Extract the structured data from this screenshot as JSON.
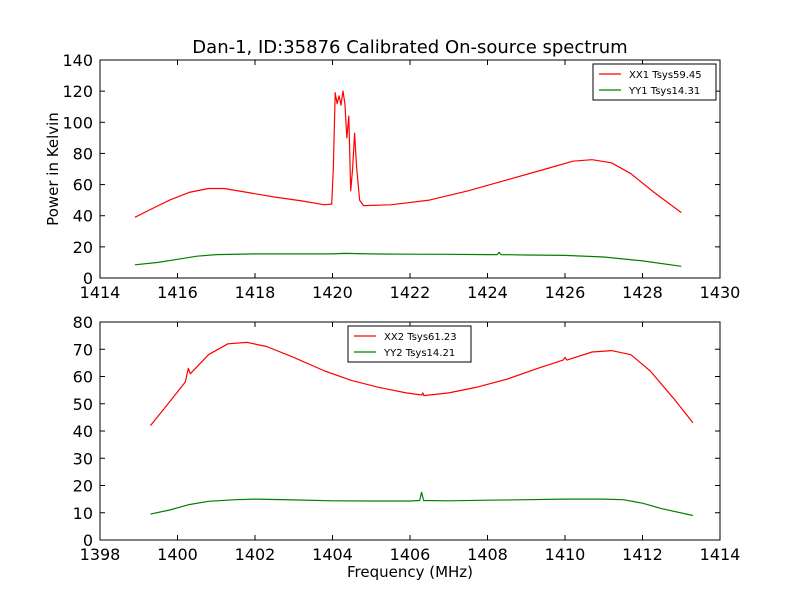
{
  "title": "Dan-1, ID:35876 Calibrated On-source spectrum",
  "xlabel": "Frequency (MHz)",
  "ylabel": "Power in Kelvin",
  "colors": {
    "xx": "#ff0000",
    "yy": "#008000"
  },
  "chart_data": [
    {
      "type": "line",
      "xlim": [
        1414,
        1430
      ],
      "ylim": [
        0,
        140
      ],
      "xticks": [
        1414,
        1416,
        1418,
        1420,
        1422,
        1424,
        1426,
        1428,
        1430
      ],
      "yticks": [
        0,
        20,
        40,
        60,
        80,
        100,
        120,
        140
      ],
      "legend_position": "top-right",
      "series": [
        {
          "name": "XX1 Tsys59.45",
          "color": "#ff0000",
          "points": [
            [
              1414.9,
              39
            ],
            [
              1415.3,
              44
            ],
            [
              1415.8,
              50
            ],
            [
              1416.3,
              55
            ],
            [
              1416.8,
              57.5
            ],
            [
              1417.2,
              57.5
            ],
            [
              1417.8,
              55
            ],
            [
              1418.5,
              52
            ],
            [
              1419.2,
              49.5
            ],
            [
              1419.8,
              47
            ],
            [
              1419.98,
              47.5
            ],
            [
              1420.02,
              70
            ],
            [
              1420.07,
              119
            ],
            [
              1420.12,
              112
            ],
            [
              1420.17,
              117
            ],
            [
              1420.22,
              111
            ],
            [
              1420.27,
              120
            ],
            [
              1420.32,
              112
            ],
            [
              1420.37,
              90
            ],
            [
              1420.42,
              104
            ],
            [
              1420.47,
              56
            ],
            [
              1420.52,
              70
            ],
            [
              1420.57,
              93
            ],
            [
              1420.62,
              72
            ],
            [
              1420.7,
              50
            ],
            [
              1420.8,
              46.5
            ],
            [
              1421.5,
              47
            ],
            [
              1422.5,
              50
            ],
            [
              1423.5,
              56
            ],
            [
              1424.5,
              63
            ],
            [
              1425.5,
              70
            ],
            [
              1426.2,
              75
            ],
            [
              1426.7,
              76
            ],
            [
              1427.2,
              74
            ],
            [
              1427.7,
              67
            ],
            [
              1428.3,
              55
            ],
            [
              1429.0,
              42
            ]
          ]
        },
        {
          "name": "YY1 Tsys14.31",
          "color": "#008000",
          "points": [
            [
              1414.9,
              8.5
            ],
            [
              1415.5,
              10
            ],
            [
              1416.0,
              12
            ],
            [
              1416.5,
              14
            ],
            [
              1417.0,
              15
            ],
            [
              1418.0,
              15.5
            ],
            [
              1419.0,
              15.5
            ],
            [
              1420.0,
              15.5
            ],
            [
              1420.3,
              15.8
            ],
            [
              1421.0,
              15.5
            ],
            [
              1422.0,
              15.3
            ],
            [
              1423.0,
              15.2
            ],
            [
              1424.0,
              15
            ],
            [
              1424.25,
              15
            ],
            [
              1424.3,
              16.5
            ],
            [
              1424.35,
              15
            ],
            [
              1425.0,
              14.8
            ],
            [
              1426.0,
              14.5
            ],
            [
              1427.0,
              13.5
            ],
            [
              1428.0,
              11
            ],
            [
              1429.0,
              7.5
            ]
          ]
        }
      ]
    },
    {
      "type": "line",
      "xlim": [
        1398,
        1414
      ],
      "ylim": [
        0,
        80
      ],
      "xticks": [
        1398,
        1400,
        1402,
        1404,
        1406,
        1408,
        1410,
        1412,
        1414
      ],
      "yticks": [
        0,
        10,
        20,
        30,
        40,
        50,
        60,
        70,
        80
      ],
      "legend_position": "top-center",
      "series": [
        {
          "name": "XX2 Tsys61.23",
          "color": "#ff0000",
          "points": [
            [
              1399.3,
              42
            ],
            [
              1399.7,
              49
            ],
            [
              1400.2,
              58
            ],
            [
              1400.28,
              63
            ],
            [
              1400.33,
              61
            ],
            [
              1400.8,
              68
            ],
            [
              1401.3,
              72
            ],
            [
              1401.8,
              72.5
            ],
            [
              1402.3,
              71
            ],
            [
              1403.0,
              67
            ],
            [
              1403.8,
              62
            ],
            [
              1404.5,
              58.5
            ],
            [
              1405.2,
              56
            ],
            [
              1405.9,
              54
            ],
            [
              1406.3,
              53.2
            ],
            [
              1406.33,
              54
            ],
            [
              1406.36,
              53
            ],
            [
              1407.0,
              54
            ],
            [
              1407.7,
              56
            ],
            [
              1408.5,
              59
            ],
            [
              1409.3,
              63
            ],
            [
              1409.95,
              66
            ],
            [
              1410.0,
              67
            ],
            [
              1410.05,
              66
            ],
            [
              1410.7,
              69
            ],
            [
              1411.2,
              69.5
            ],
            [
              1411.7,
              68
            ],
            [
              1412.2,
              62
            ],
            [
              1412.8,
              52
            ],
            [
              1413.3,
              43
            ]
          ]
        },
        {
          "name": "YY2 Tsys14.21",
          "color": "#008000",
          "points": [
            [
              1399.3,
              9.5
            ],
            [
              1399.8,
              11
            ],
            [
              1400.3,
              13
            ],
            [
              1400.8,
              14.2
            ],
            [
              1401.5,
              14.8
            ],
            [
              1402.0,
              15
            ],
            [
              1403.0,
              14.7
            ],
            [
              1404.0,
              14.4
            ],
            [
              1405.0,
              14.3
            ],
            [
              1406.0,
              14.3
            ],
            [
              1406.25,
              14.5
            ],
            [
              1406.3,
              17.5
            ],
            [
              1406.35,
              14.5
            ],
            [
              1407.0,
              14.4
            ],
            [
              1408.0,
              14.6
            ],
            [
              1409.0,
              14.8
            ],
            [
              1410.0,
              15
            ],
            [
              1411.0,
              15
            ],
            [
              1411.5,
              14.8
            ],
            [
              1412.0,
              13.5
            ],
            [
              1412.5,
              11.5
            ],
            [
              1413.3,
              9
            ]
          ]
        }
      ]
    }
  ]
}
